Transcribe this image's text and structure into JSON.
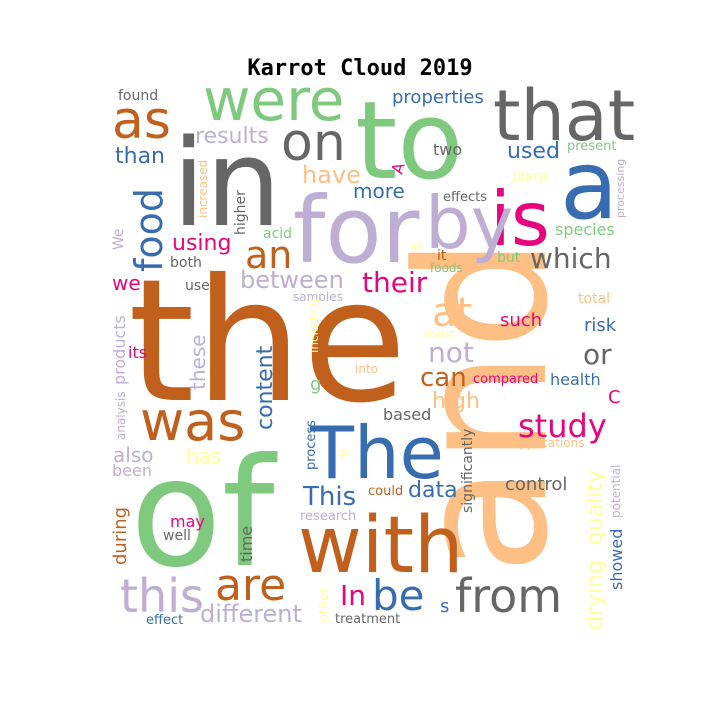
{
  "title": "Karrot Cloud 2019",
  "palette": {
    "orange": "#c0601c",
    "peach": "#fdbf83",
    "green": "#7fc97f",
    "purple": "#beaed4",
    "blue": "#386cb0",
    "magenta": "#e7057d",
    "gray": "#666666",
    "yellow": "#ffff99"
  },
  "words": [
    {
      "text": "the",
      "color": "#c0601c"
    },
    {
      "text": "and",
      "color": "#fdbf83"
    },
    {
      "text": "of",
      "color": "#7fc97f"
    },
    {
      "text": "in",
      "color": "#666666"
    },
    {
      "text": "to",
      "color": "#7fc97f"
    },
    {
      "text": "for",
      "color": "#beaed4"
    },
    {
      "text": "a",
      "color": "#386cb0"
    },
    {
      "text": "is",
      "color": "#e7057d"
    },
    {
      "text": "by",
      "color": "#beaed4"
    },
    {
      "text": "with",
      "color": "#c0601c"
    },
    {
      "text": "The",
      "color": "#386cb0"
    },
    {
      "text": "that",
      "color": "#666666"
    },
    {
      "text": "were",
      "color": "#7fc97f"
    },
    {
      "text": "on",
      "color": "#666666"
    },
    {
      "text": "as",
      "color": "#c0601c"
    },
    {
      "text": "was",
      "color": "#c0601c"
    },
    {
      "text": "are",
      "color": "#c0601c"
    },
    {
      "text": "from",
      "color": "#666666"
    },
    {
      "text": "this",
      "color": "#beaed4"
    },
    {
      "text": "be",
      "color": "#386cb0"
    },
    {
      "text": "an",
      "color": "#c0601c"
    },
    {
      "text": "food",
      "color": "#386cb0"
    },
    {
      "text": "at",
      "color": "#fdbf83"
    },
    {
      "text": "study",
      "color": "#e7057d"
    },
    {
      "text": "which",
      "color": "#666666"
    },
    {
      "text": "their",
      "color": "#e7057d"
    },
    {
      "text": "not",
      "color": "#beaed4"
    },
    {
      "text": "can",
      "color": "#c0601c"
    },
    {
      "text": "or",
      "color": "#666666"
    },
    {
      "text": "between",
      "color": "#beaed4"
    },
    {
      "text": "This",
      "color": "#386cb0"
    },
    {
      "text": "In",
      "color": "#e7057d"
    },
    {
      "text": "different",
      "color": "#beaed4"
    },
    {
      "text": "have",
      "color": "#fdbf83"
    },
    {
      "text": "more",
      "color": "#386cb0"
    },
    {
      "text": "results",
      "color": "#beaed4"
    },
    {
      "text": "used",
      "color": "#386cb0"
    },
    {
      "text": "than",
      "color": "#386cb0"
    },
    {
      "text": "using",
      "color": "#e7057d"
    },
    {
      "text": "content",
      "color": "#386cb0"
    },
    {
      "text": "data",
      "color": "#386cb0"
    },
    {
      "text": "drying",
      "color": "#ffff99"
    },
    {
      "text": "quality",
      "color": "#ffff99"
    },
    {
      "text": "properties",
      "color": "#386cb0"
    },
    {
      "text": "high",
      "color": "#fdbf83"
    },
    {
      "text": "also",
      "color": "#beaed4"
    },
    {
      "text": "has",
      "color": "#ffff99"
    },
    {
      "text": "these",
      "color": "#beaed4"
    },
    {
      "text": "two",
      "color": "#666666"
    },
    {
      "text": "such",
      "color": "#e7057d"
    },
    {
      "text": "species",
      "color": "#7fc97f"
    },
    {
      "text": "control",
      "color": "#666666"
    },
    {
      "text": "health",
      "color": "#386cb0"
    },
    {
      "text": "risk",
      "color": "#386cb0"
    },
    {
      "text": "we",
      "color": "#e7057d"
    },
    {
      "text": "may",
      "color": "#e7057d"
    },
    {
      "text": "its",
      "color": "#e7057d"
    },
    {
      "text": "products",
      "color": "#beaed4"
    },
    {
      "text": "been",
      "color": "#beaed4"
    },
    {
      "text": "during",
      "color": "#c0601c"
    },
    {
      "text": "showed",
      "color": "#386cb0"
    },
    {
      "text": "based",
      "color": "#666666"
    },
    {
      "text": "found",
      "color": "#666666"
    },
    {
      "text": "both",
      "color": "#666666"
    },
    {
      "text": "use",
      "color": "#666666"
    },
    {
      "text": "higher",
      "color": "#666666"
    },
    {
      "text": "increased",
      "color": "#fdbf83"
    },
    {
      "text": "We",
      "color": "#beaed4"
    },
    {
      "text": "acid",
      "color": "#7fc97f"
    },
    {
      "text": "effects",
      "color": "#666666"
    },
    {
      "text": "plant",
      "color": "#ffff99"
    },
    {
      "text": "present",
      "color": "#7fc97f"
    },
    {
      "text": "processing",
      "color": "#beaed4"
    },
    {
      "text": "all",
      "color": "#ffff99"
    },
    {
      "text": "it",
      "color": "#c0601c"
    },
    {
      "text": "foods",
      "color": "#7fc97f"
    },
    {
      "text": "but",
      "color": "#7fc97f"
    },
    {
      "text": "samples",
      "color": "#beaed4"
    },
    {
      "text": "total",
      "color": "#fdbf83"
    },
    {
      "text": "including",
      "color": "#ffff99"
    },
    {
      "text": "most",
      "color": "#ffff99"
    },
    {
      "text": "into",
      "color": "#fdbf83"
    },
    {
      "text": "g",
      "color": "#7fc97f"
    },
    {
      "text": "compared",
      "color": "#e7057d"
    },
    {
      "text": "C",
      "color": "#e7057d"
    },
    {
      "text": "analysis",
      "color": "#beaed4"
    },
    {
      "text": "applications",
      "color": "#fdbf83"
    },
    {
      "text": "significantly",
      "color": "#666666"
    },
    {
      "text": "process",
      "color": "#386cb0"
    },
    {
      "text": "P",
      "color": "#ffff99"
    },
    {
      "text": "could",
      "color": "#c0601c"
    },
    {
      "text": "research",
      "color": "#beaed4"
    },
    {
      "text": "well",
      "color": "#666666"
    },
    {
      "text": "time",
      "color": "#666666"
    },
    {
      "text": "other",
      "color": "#ffff99"
    },
    {
      "text": "potential",
      "color": "#beaed4"
    },
    {
      "text": "effect",
      "color": "#386cb0"
    },
    {
      "text": "treatment",
      "color": "#666666"
    },
    {
      "text": "s",
      "color": "#386cb0"
    },
    {
      "text": "A",
      "color": "#e7057d"
    }
  ]
}
